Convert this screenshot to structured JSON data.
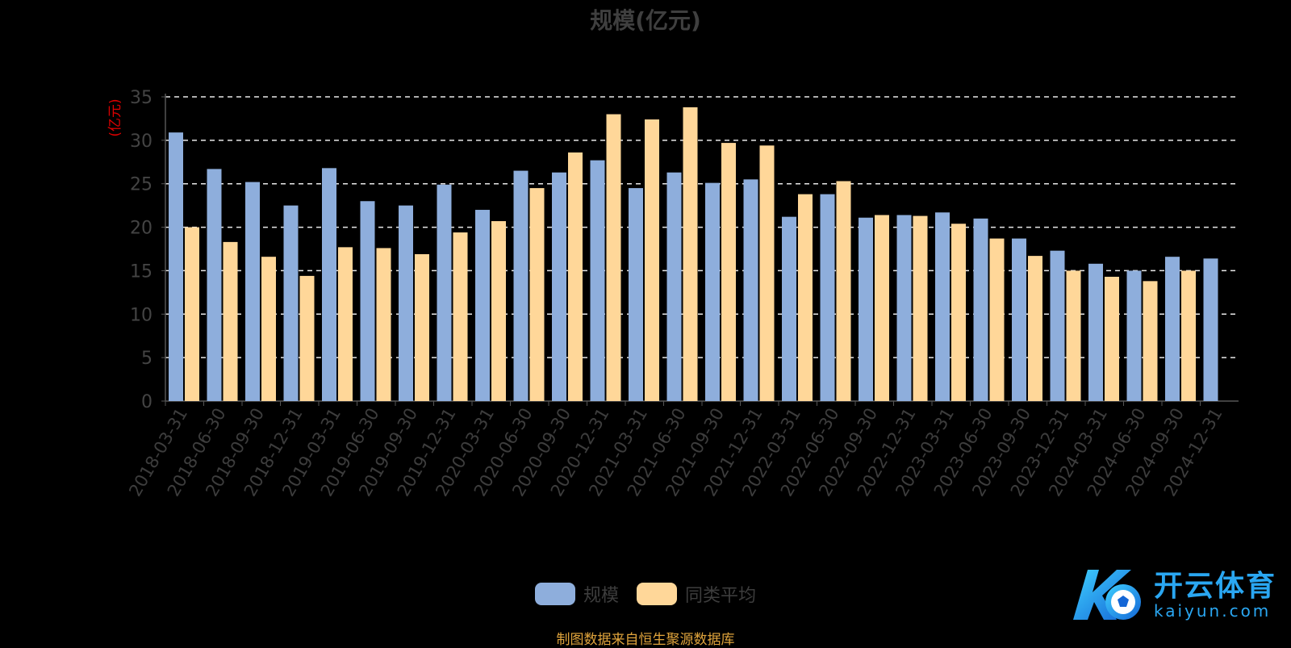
{
  "chart_data": {
    "type": "bar",
    "title": "规模(亿元)",
    "ylabel": "(亿元)",
    "ylim": [
      0,
      35
    ],
    "yticks": [
      0,
      5,
      10,
      15,
      20,
      25,
      30,
      35
    ],
    "grid": true,
    "legend_position": "bottom-center",
    "categories": [
      "2018-03-31",
      "2018-06-30",
      "2018-09-30",
      "2018-12-31",
      "2019-03-31",
      "2019-06-30",
      "2019-09-30",
      "2019-12-31",
      "2020-03-31",
      "2020-06-30",
      "2020-09-30",
      "2020-12-31",
      "2021-03-31",
      "2021-06-30",
      "2021-09-30",
      "2021-12-31",
      "2022-03-31",
      "2022-06-30",
      "2022-09-30",
      "2022-12-31",
      "2023-03-31",
      "2023-06-30",
      "2023-09-30",
      "2023-12-31",
      "2024-03-31",
      "2024-06-30",
      "2024-09-30",
      "2024-12-31"
    ],
    "series": [
      {
        "name": "规模",
        "color": "#8eaedc",
        "values": [
          30.9,
          26.7,
          25.2,
          22.5,
          26.8,
          23.0,
          22.5,
          24.9,
          22.0,
          26.5,
          26.3,
          27.7,
          24.5,
          26.3,
          25.1,
          25.5,
          21.2,
          23.8,
          21.1,
          21.4,
          21.7,
          21.0,
          18.7,
          17.3,
          15.8,
          15.0,
          16.6,
          16.4
        ]
      },
      {
        "name": "同类平均",
        "color": "#ffd799",
        "values": [
          20.0,
          18.3,
          16.6,
          14.4,
          17.7,
          17.6,
          16.9,
          19.4,
          20.7,
          24.5,
          28.6,
          33.0,
          32.4,
          33.8,
          29.7,
          29.4,
          23.8,
          25.3,
          21.4,
          21.3,
          20.4,
          18.7,
          16.7,
          15.0,
          14.3,
          13.8,
          15.0,
          null
        ]
      }
    ]
  },
  "legend": {
    "items": [
      {
        "label": "规模",
        "color": "#8eaedc"
      },
      {
        "label": "同类平均",
        "color": "#ffd799"
      }
    ]
  },
  "source_note": "制图数据来自恒生聚源数据库",
  "watermark": {
    "text_cn": "开云体育",
    "text_en": "kaiyun.com"
  }
}
